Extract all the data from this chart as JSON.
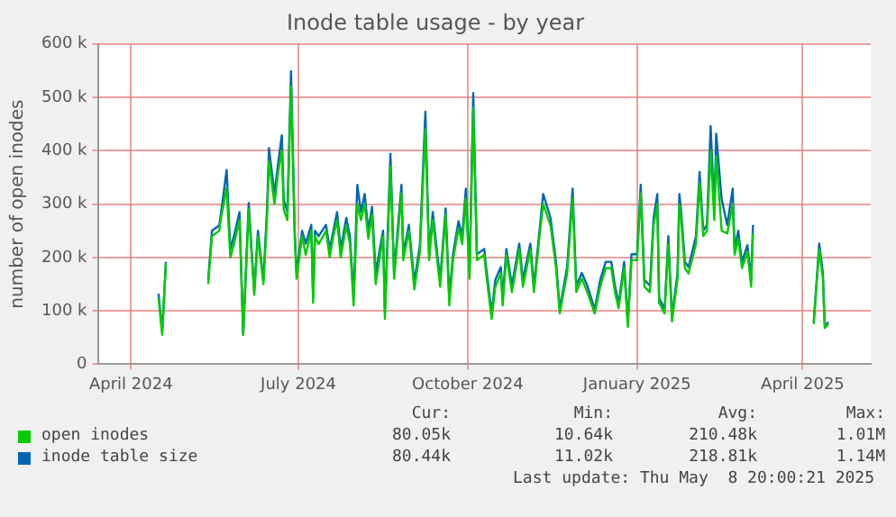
{
  "chart_data": {
    "type": "line",
    "title": "Inode table usage - by year",
    "ylabel": "number of open inodes",
    "x": [
      "2024-04-16",
      "2024-04-18",
      "2024-04-20",
      "2024-04-30",
      "2024-05-13",
      "2024-05-15",
      "2024-05-19",
      "2024-05-20",
      "2024-05-23",
      "2024-05-25",
      "2024-05-27",
      "2024-05-30",
      "2024-06-01",
      "2024-06-04",
      "2024-06-07",
      "2024-06-09",
      "2024-06-12",
      "2024-06-14",
      "2024-06-15",
      "2024-06-18",
      "2024-06-20",
      "2024-06-22",
      "2024-06-23",
      "2024-06-25",
      "2024-06-27",
      "2024-06-29",
      "2024-06-30",
      "2024-07-03",
      "2024-07-05",
      "2024-07-08",
      "2024-07-09",
      "2024-07-10",
      "2024-07-12",
      "2024-07-16",
      "2024-07-18",
      "2024-07-20",
      "2024-07-22",
      "2024-07-24",
      "2024-07-27",
      "2024-07-29",
      "2024-07-31",
      "2024-08-02",
      "2024-08-04",
      "2024-08-06",
      "2024-08-08",
      "2024-08-10",
      "2024-08-12",
      "2024-08-16",
      "2024-08-17",
      "2024-08-20",
      "2024-08-22",
      "2024-08-26",
      "2024-08-27",
      "2024-08-30",
      "2024-09-02",
      "2024-09-05",
      "2024-09-08",
      "2024-09-10",
      "2024-09-12",
      "2024-09-16",
      "2024-09-19",
      "2024-09-21",
      "2024-09-23",
      "2024-09-26",
      "2024-09-28",
      "2024-09-30",
      "2024-10-02",
      "2024-10-04",
      "2024-10-06",
      "2024-10-10",
      "2024-10-11",
      "2024-10-14",
      "2024-10-16",
      "2024-10-19",
      "2024-10-20",
      "2024-10-22",
      "2024-10-25",
      "2024-10-29",
      "2024-10-31",
      "2024-11-04",
      "2024-11-06",
      "2024-11-09",
      "2024-11-11",
      "2024-11-15",
      "2024-11-18",
      "2024-11-20",
      "2024-11-24",
      "2024-11-27",
      "2024-11-29",
      "2024-12-02",
      "2024-12-05",
      "2024-12-09",
      "2024-12-12",
      "2024-12-15",
      "2024-12-18",
      "2024-12-20",
      "2024-12-22",
      "2024-12-25",
      "2024-12-27",
      "2024-12-29",
      "2025-01-01",
      "2025-01-03",
      "2025-01-05",
      "2025-01-08",
      "2025-01-10",
      "2025-01-12",
      "2025-01-13",
      "2025-01-16",
      "2025-01-18",
      "2025-01-20",
      "2025-01-23",
      "2025-01-24",
      "2025-01-25",
      "2025-01-27",
      "2025-01-29",
      "2025-02-02",
      "2025-02-04",
      "2025-02-06",
      "2025-02-08",
      "2025-02-10",
      "2025-02-12",
      "2025-02-13",
      "2025-02-16",
      "2025-02-19",
      "2025-02-22",
      "2025-02-23",
      "2025-02-25",
      "2025-02-27",
      "2025-03-02",
      "2025-03-04",
      "2025-03-05",
      "2025-03-20",
      "2025-04-07",
      "2025-04-10",
      "2025-04-12",
      "2025-04-13",
      "2025-04-15"
    ],
    "series": [
      {
        "name": "open inodes",
        "color": "#00cc00",
        "values": [
          124000,
          55000,
          189000,
          null,
          150000,
          240000,
          250000,
          275000,
          330000,
          200000,
          225000,
          270000,
          55000,
          290000,
          130000,
          240000,
          150000,
          280000,
          380000,
          300000,
          360000,
          400000,
          290000,
          270000,
          520000,
          235000,
          160000,
          240000,
          205000,
          250000,
          115000,
          240000,
          225000,
          250000,
          200000,
          240000,
          270000,
          200000,
          260000,
          225000,
          110000,
          300000,
          270000,
          300000,
          235000,
          280000,
          150000,
          240000,
          85000,
          370000,
          160000,
          320000,
          195000,
          250000,
          140000,
          210000,
          440000,
          195000,
          270000,
          145000,
          280000,
          110000,
          195000,
          255000,
          225000,
          310000,
          160000,
          480000,
          195000,
          205000,
          170000,
          85000,
          145000,
          170000,
          110000,
          205000,
          135000,
          215000,
          145000,
          215000,
          135000,
          240000,
          300000,
          260000,
          180000,
          95000,
          170000,
          310000,
          135000,
          160000,
          135000,
          95000,
          145000,
          180000,
          180000,
          135000,
          105000,
          180000,
          70000,
          195000,
          195000,
          320000,
          145000,
          135000,
          260000,
          300000,
          115000,
          95000,
          225000,
          80000,
          160000,
          300000,
          270000,
          180000,
          170000,
          225000,
          340000,
          240000,
          250000,
          400000,
          270000,
          390000,
          250000,
          245000,
          300000,
          205000,
          235000,
          180000,
          210000,
          145000,
          245000,
          null,
          75000,
          215000,
          160000,
          68000,
          75000
        ]
      },
      {
        "name": "inode table size",
        "color": "#0066b3",
        "values": [
          132000,
          62000,
          192000,
          null,
          158000,
          250000,
          260000,
          285000,
          364000,
          216000,
          240000,
          285000,
          55000,
          302000,
          137000,
          250000,
          158000,
          295000,
          405000,
          319000,
          377000,
          429000,
          309000,
          285000,
          549000,
          250000,
          171000,
          250000,
          226000,
          261000,
          124000,
          250000,
          240000,
          261000,
          216000,
          250000,
          285000,
          216000,
          274000,
          240000,
          124000,
          336000,
          285000,
          319000,
          250000,
          295000,
          171000,
          250000,
          96000,
          394000,
          171000,
          336000,
          206000,
          261000,
          154000,
          223000,
          473000,
          206000,
          285000,
          158000,
          292000,
          124000,
          206000,
          268000,
          240000,
          329000,
          175000,
          508000,
          206000,
          216000,
          182000,
          96000,
          158000,
          182000,
          124000,
          216000,
          147000,
          226000,
          158000,
          226000,
          147000,
          250000,
          319000,
          274000,
          192000,
          103000,
          182000,
          329000,
          147000,
          171000,
          147000,
          103000,
          158000,
          192000,
          192000,
          147000,
          113000,
          192000,
          79000,
          206000,
          206000,
          336000,
          158000,
          147000,
          274000,
          319000,
          124000,
          103000,
          240000,
          89000,
          171000,
          319000,
          285000,
          192000,
          182000,
          240000,
          360000,
          250000,
          261000,
          446000,
          285000,
          432000,
          309000,
          261000,
          329000,
          216000,
          250000,
          192000,
          223000,
          158000,
          261000,
          null,
          79000,
          226000,
          171000,
          72000,
          79000
        ]
      }
    ],
    "xlim": [
      "2024-03-14",
      "2025-05-08"
    ],
    "xticks": [
      {
        "value": "2024-04-01",
        "label": "April 2024"
      },
      {
        "value": "2024-07-01",
        "label": "July 2024"
      },
      {
        "value": "2024-10-01",
        "label": "October 2024"
      },
      {
        "value": "2025-01-01",
        "label": "January 2025"
      },
      {
        "value": "2025-04-01",
        "label": "April 2025"
      }
    ],
    "ylim": [
      0,
      600000
    ],
    "yticks": [
      {
        "value": 0,
        "label": "0"
      },
      {
        "value": 100000,
        "label": "100 k"
      },
      {
        "value": 200000,
        "label": "200 k"
      },
      {
        "value": 300000,
        "label": "300 k"
      },
      {
        "value": 400000,
        "label": "400 k"
      },
      {
        "value": 500000,
        "label": "500 k"
      },
      {
        "value": 600000,
        "label": "600 k"
      }
    ],
    "grid": true,
    "legend": "bottom",
    "line_style": "solid",
    "marker": "none",
    "annotations": [
      "Cur:",
      "Min:",
      "Avg:",
      "Max:",
      "80.05k",
      "10.64k",
      "210.48k",
      "1.01M",
      "80.44k",
      "11.02k",
      "218.81k",
      "1.14M",
      "Last update: Thu May  8 20:00:21 2025"
    ]
  }
}
